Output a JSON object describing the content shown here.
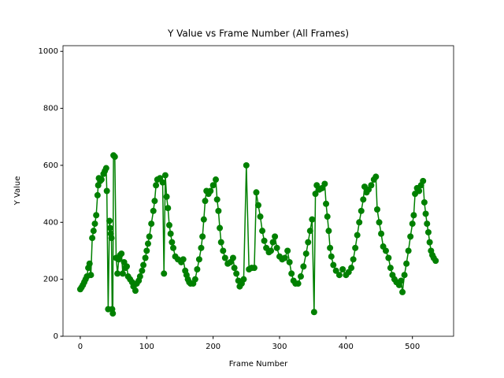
{
  "chart_data": {
    "type": "scatter",
    "title": "Y Value vs Frame Number (All Frames)",
    "xlabel": "Frame Number",
    "ylabel": "Y Value",
    "color": "#008000",
    "connect": true,
    "x": [
      0,
      2,
      4,
      6,
      8,
      10,
      12,
      14,
      16,
      18,
      20,
      22,
      24,
      26,
      27,
      28,
      30,
      32,
      35,
      37,
      39,
      40,
      42,
      44,
      45,
      46,
      47,
      48,
      49,
      50,
      52,
      54,
      56,
      58,
      60,
      62,
      64,
      66,
      68,
      70,
      72,
      75,
      78,
      80,
      83,
      85,
      88,
      90,
      93,
      95,
      98,
      100,
      102,
      104,
      107,
      110,
      112,
      114,
      116,
      120,
      124,
      126,
      128,
      130,
      132,
      134,
      136,
      138,
      140,
      143,
      147,
      152,
      155,
      158,
      160,
      162,
      164,
      166,
      170,
      173,
      176,
      179,
      182,
      184,
      186,
      188,
      190,
      193,
      196,
      200,
      204,
      206,
      208,
      210,
      212,
      215,
      218,
      222,
      226,
      230,
      232,
      235,
      238,
      240,
      243,
      246,
      250,
      254,
      258,
      262,
      265,
      268,
      271,
      274,
      277,
      280,
      284,
      287,
      290,
      293,
      296,
      300,
      304,
      308,
      312,
      315,
      318,
      321,
      324,
      328,
      332,
      336,
      340,
      343,
      346,
      349,
      352,
      354,
      356,
      360,
      364,
      368,
      370,
      372,
      374,
      376,
      378,
      381,
      385,
      390,
      395,
      400,
      404,
      408,
      411,
      414,
      417,
      420,
      423,
      426,
      428,
      431,
      434,
      438,
      442,
      445,
      447,
      450,
      453,
      456,
      460,
      464,
      467,
      470,
      473,
      476,
      480,
      483,
      485,
      488,
      491,
      494,
      497,
      500,
      502,
      504,
      507,
      510,
      513,
      516,
      518,
      520,
      522,
      524,
      526,
      528,
      530,
      532,
      535
    ],
    "y": [
      165,
      172,
      180,
      190,
      200,
      210,
      240,
      255,
      215,
      345,
      370,
      395,
      425,
      495,
      530,
      555,
      545,
      550,
      570,
      580,
      590,
      510,
      95,
      405,
      380,
      360,
      345,
      95,
      80,
      635,
      630,
      275,
      220,
      270,
      285,
      290,
      220,
      260,
      240,
      245,
      210,
      200,
      190,
      175,
      160,
      185,
      195,
      210,
      230,
      250,
      275,
      300,
      325,
      350,
      395,
      440,
      475,
      530,
      550,
      555,
      540,
      220,
      565,
      490,
      450,
      390,
      360,
      330,
      310,
      280,
      270,
      260,
      270,
      230,
      215,
      200,
      190,
      185,
      185,
      200,
      235,
      270,
      310,
      350,
      410,
      475,
      510,
      500,
      510,
      530,
      550,
      480,
      440,
      380,
      330,
      300,
      275,
      255,
      260,
      275,
      240,
      220,
      195,
      175,
      185,
      200,
      600,
      235,
      240,
      240,
      505,
      460,
      420,
      370,
      335,
      310,
      295,
      300,
      330,
      350,
      310,
      280,
      270,
      275,
      300,
      260,
      220,
      195,
      185,
      185,
      210,
      245,
      290,
      330,
      370,
      410,
      85,
      500,
      530,
      515,
      520,
      535,
      465,
      420,
      370,
      310,
      280,
      250,
      230,
      215,
      235,
      215,
      225,
      240,
      270,
      310,
      355,
      400,
      440,
      480,
      525,
      505,
      515,
      530,
      550,
      560,
      445,
      400,
      360,
      315,
      300,
      275,
      240,
      215,
      200,
      190,
      180,
      195,
      155,
      215,
      255,
      300,
      350,
      395,
      425,
      500,
      520,
      510,
      530,
      545,
      470,
      430,
      395,
      365,
      330,
      300,
      285,
      275,
      265
    ],
    "xlim": [
      -26,
      562
    ],
    "ylim": [
      0,
      1020
    ],
    "xticks": [
      0,
      100,
      200,
      300,
      400,
      500
    ],
    "yticks": [
      0,
      200,
      400,
      600,
      800,
      1000
    ]
  }
}
